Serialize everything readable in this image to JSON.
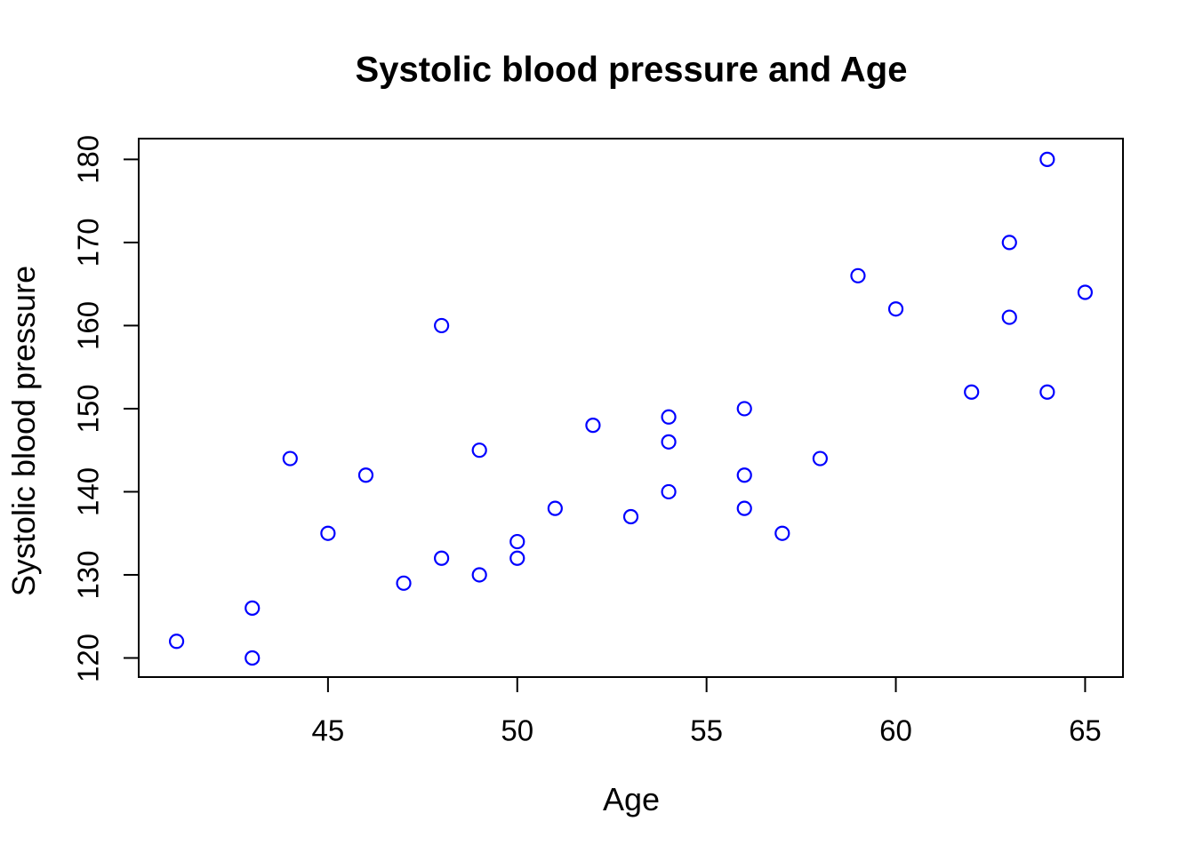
{
  "figure": {
    "background": "#ffffff"
  },
  "chart_data": {
    "type": "scatter",
    "title": "Systolic blood pressure and Age",
    "xlabel": "Age",
    "ylabel": "Systolic blood pressure",
    "x_ticks": [
      45,
      50,
      55,
      60,
      65
    ],
    "y_ticks": [
      120,
      130,
      140,
      150,
      160,
      170,
      180
    ],
    "xlim": [
      40.0,
      66.0
    ],
    "ylim": [
      117.7,
      182.5
    ],
    "grid": false,
    "legend": "none",
    "marker": "open-circle",
    "point_color": "#0000FF",
    "axis_color": "#000000",
    "text_color": "#000000",
    "points": [
      [
        41,
        122
      ],
      [
        43,
        120
      ],
      [
        43,
        126
      ],
      [
        44,
        144
      ],
      [
        45,
        135
      ],
      [
        46,
        142
      ],
      [
        47,
        129
      ],
      [
        48,
        132
      ],
      [
        48,
        160
      ],
      [
        49,
        130
      ],
      [
        49,
        145
      ],
      [
        50,
        132
      ],
      [
        50,
        134
      ],
      [
        51,
        138
      ],
      [
        52,
        148
      ],
      [
        53,
        137
      ],
      [
        54,
        140
      ],
      [
        54,
        146
      ],
      [
        54,
        149
      ],
      [
        56,
        138
      ],
      [
        56,
        142
      ],
      [
        56,
        150
      ],
      [
        57,
        135
      ],
      [
        58,
        144
      ],
      [
        59,
        166
      ],
      [
        60,
        162
      ],
      [
        62,
        152
      ],
      [
        63,
        161
      ],
      [
        63,
        170
      ],
      [
        64,
        152
      ],
      [
        64,
        180
      ],
      [
        65,
        164
      ]
    ]
  }
}
